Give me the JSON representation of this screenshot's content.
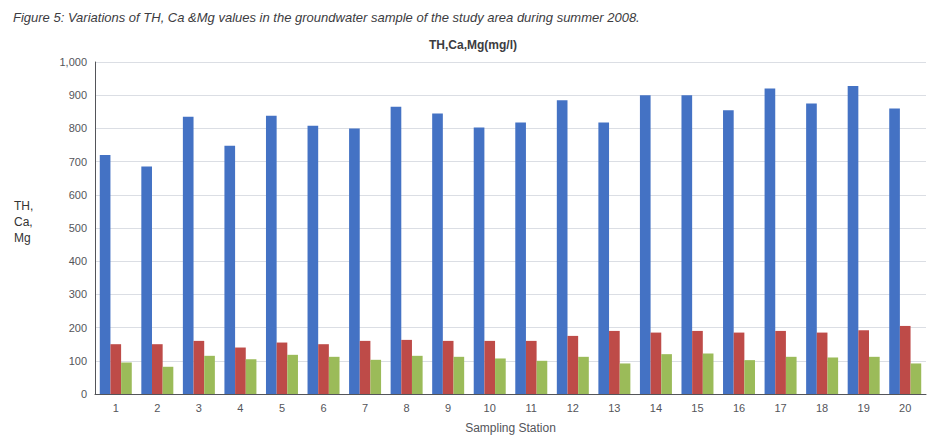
{
  "chart_data": {
    "type": "bar",
    "title": "Figure 5: Variations of TH, Ca &Mg values in the groundwater sample of the study area during summer 2008.",
    "subtitle": "TH,Ca,Mg(mg/l)",
    "xlabel": "Sampling Station",
    "ylabel": "TH,\nCa,\nMg",
    "categories": [
      "1",
      "2",
      "3",
      "4",
      "5",
      "6",
      "7",
      "8",
      "9",
      "10",
      "11",
      "12",
      "13",
      "14",
      "15",
      "16",
      "17",
      "18",
      "19",
      "20"
    ],
    "series": [
      {
        "color": "#4472C4",
        "values": [
          720,
          685,
          835,
          748,
          838,
          808,
          800,
          865,
          845,
          803,
          818,
          885,
          818,
          900,
          900,
          855,
          920,
          875,
          928,
          860
        ]
      },
      {
        "color": "#BE4B48",
        "values": [
          150,
          150,
          160,
          140,
          155,
          150,
          160,
          163,
          160,
          160,
          160,
          175,
          190,
          185,
          190,
          185,
          190,
          185,
          192,
          205
        ]
      },
      {
        "color": "#9BBB59",
        "values": [
          95,
          82,
          115,
          105,
          118,
          112,
          103,
          115,
          112,
          107,
          100,
          112,
          92,
          120,
          122,
          102,
          112,
          110,
          112,
          92
        ]
      }
    ],
    "ylim": [
      0,
      1000
    ],
    "yticks": [
      0,
      100,
      200,
      300,
      400,
      500,
      600,
      700,
      800,
      900,
      1000
    ],
    "grid": true
  }
}
